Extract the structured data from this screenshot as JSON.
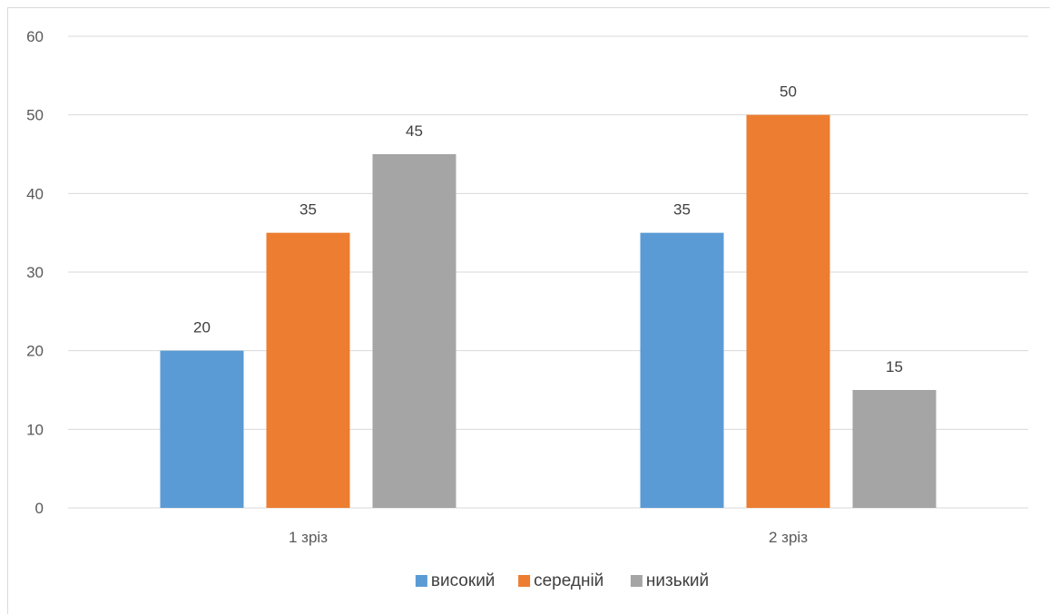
{
  "chart_data": {
    "type": "bar",
    "categories": [
      "1 зріз",
      "2 зріз"
    ],
    "series": [
      {
        "name": "високий",
        "values": [
          20,
          35
        ],
        "color": "#5B9BD5"
      },
      {
        "name": "середній",
        "values": [
          35,
          50
        ],
        "color": "#ED7D31"
      },
      {
        "name": "низький",
        "values": [
          45,
          15
        ],
        "color": "#A5A5A5"
      }
    ],
    "ylim": [
      0,
      60
    ],
    "yticks": [
      0,
      10,
      20,
      30,
      40,
      50,
      60
    ],
    "grid": true,
    "legend": "bottom",
    "data_labels": true
  }
}
